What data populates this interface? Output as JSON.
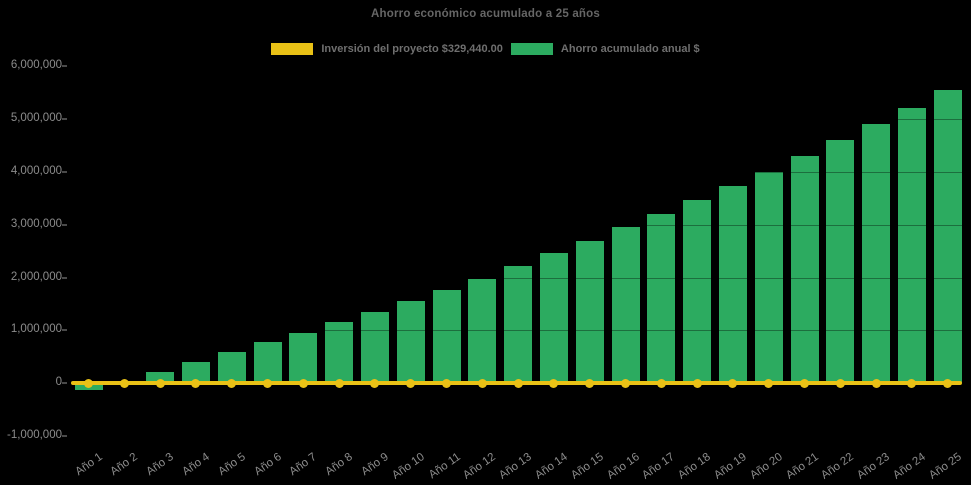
{
  "chart_data": {
    "type": "bar",
    "title": "Ahorro económico acumulado a 25 años",
    "categories": [
      "Año 1",
      "Año 2",
      "Año 3",
      "Año 4",
      "Año 5",
      "Año 6",
      "Año 7",
      "Año 8",
      "Año 9",
      "Año 10",
      "Año 11",
      "Año 12",
      "Año 13",
      "Año 14",
      "Año 15",
      "Año 16",
      "Año 17",
      "Año 18",
      "Año 19",
      "Año 20",
      "Año 21",
      "Año 22",
      "Año 23",
      "Año 24",
      "Año 25"
    ],
    "series": [
      {
        "name": "Inversión del proyecto $329,440.00",
        "type": "line",
        "color": "#e9c116",
        "amount_in_label": 329440,
        "plotted_level": 0
      },
      {
        "name": "Ahorro acumulado anual $",
        "type": "bar",
        "color": "#2cab60",
        "values": [
          -130000,
          50000,
          220000,
          400000,
          600000,
          780000,
          960000,
          1150000,
          1340000,
          1560000,
          1770000,
          1980000,
          2220000,
          2470000,
          2690000,
          2950000,
          3200000,
          3470000,
          3730000,
          4000000,
          4290000,
          4600000,
          4900000,
          5210000,
          5550000
        ]
      }
    ],
    "xlabel": "",
    "ylabel": "",
    "ylim": [
      -1000000,
      6000000
    ],
    "ytick_interval": 1000000,
    "ytick_labels": [
      "6,000,000",
      "5,000,000",
      "4,000,000",
      "3,000,000",
      "2,000,000",
      "1,000,000",
      "0",
      "-1,000,000"
    ],
    "ytick_values": [
      6000000,
      5000000,
      4000000,
      3000000,
      2000000,
      1000000,
      0,
      -1000000
    ],
    "legend_position": "top-center",
    "grid": "horizontal-subtle",
    "colors": {
      "background": "#000000",
      "bar_green": "#2cab60",
      "line_yellow": "#e9c116",
      "title_text": "#666666",
      "legend_text": "#6f6f6f",
      "tick_text": "#8c8c8c"
    }
  }
}
